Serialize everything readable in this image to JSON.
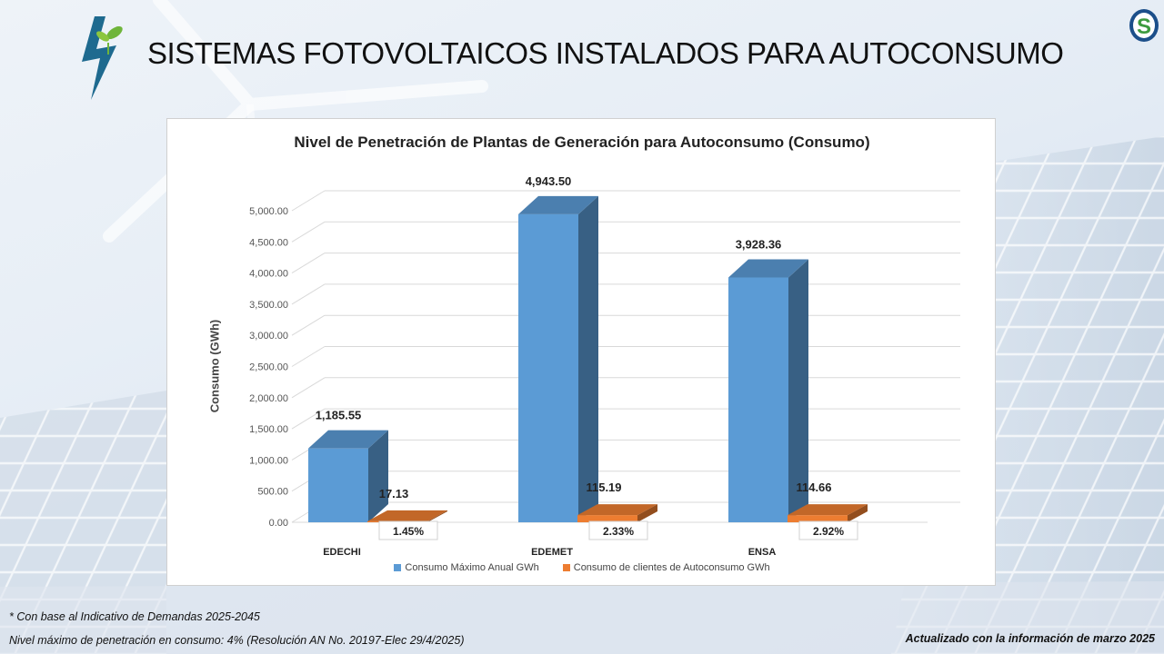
{
  "header": {
    "title": "SISTEMAS FOTOVOLTAICOS INSTALADOS PARA AUTOCONSUMO",
    "logo_icon": "lightning-leaf-icon",
    "badge_icon": "s-logo-icon",
    "logo_colors": {
      "bolt": "#1e6a8f",
      "leaf": "#6fb53b"
    }
  },
  "chart_data": {
    "type": "bar",
    "title": "Nivel de Penetración de Plantas de Generación para Autoconsumo (Consumo)",
    "ylabel": "Consumo (GWh)",
    "xlabel": "",
    "ylim": [
      0,
      5000
    ],
    "ytick_step": 500,
    "yticks": [
      "0.00",
      "500.00",
      "1,000.00",
      "1,500.00",
      "2,000.00",
      "2,500.00",
      "3,000.00",
      "3,500.00",
      "4,000.00",
      "4,500.00",
      "5,000.00"
    ],
    "categories": [
      "EDECHI",
      "EDEMET",
      "ENSA"
    ],
    "series": [
      {
        "name": "Consumo Máximo Anual GWh",
        "color": "#5b9bd5",
        "values": [
          1185.55,
          4943.5,
          3928.36
        ],
        "labels": [
          "1,185.55",
          "4,943.50",
          "3,928.36"
        ]
      },
      {
        "name": "Consumo de clientes de Autoconsumo GWh",
        "color": "#ed7d31",
        "values": [
          17.13,
          115.19,
          114.66
        ],
        "labels": [
          "17.13",
          "115.19",
          "114.66"
        ]
      }
    ],
    "percent_labels": [
      "1.45%",
      "2.33%",
      "2.92%"
    ],
    "legend_position": "bottom",
    "grid": true
  },
  "footer": {
    "note1": "* Con base al  Indicativo de Demandas 2025-2045",
    "note2": "Nivel máximo de penetración en consumo: 4% (Resolución AN No. 20197-Elec 29/4/2025)",
    "updated": "Actualizado con la información de marzo 2025"
  }
}
